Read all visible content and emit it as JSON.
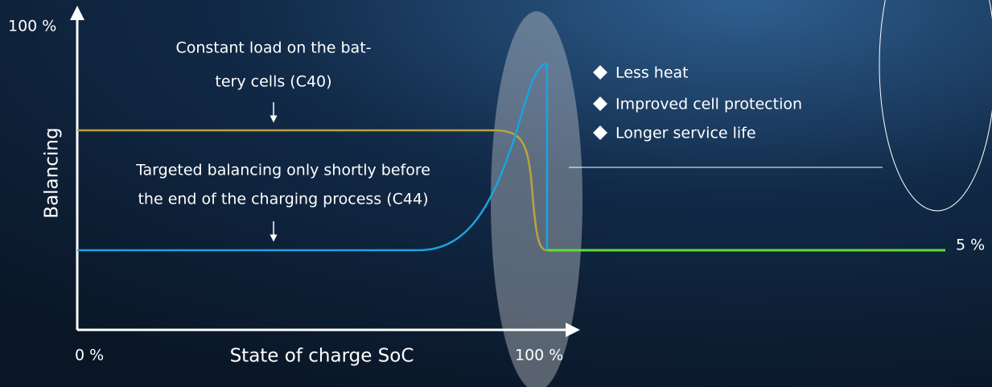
{
  "axes": {
    "y_max_label": "100 %",
    "y_title": "Balancing",
    "x_min_label": "0 %",
    "x_max_label": "100 %",
    "x_title": "State of charge SoC"
  },
  "annotations": [
    {
      "lines": [
        "Constant load on the bat-",
        "tery cells (C40)"
      ]
    },
    {
      "lines": [
        "Targeted balancing only shortly before",
        "the end of the charging process (C44)"
      ]
    }
  ],
  "end_label": "5 %",
  "benefits": [
    "Less heat",
    "Improved cell protection",
    "Longer service life"
  ]
}
